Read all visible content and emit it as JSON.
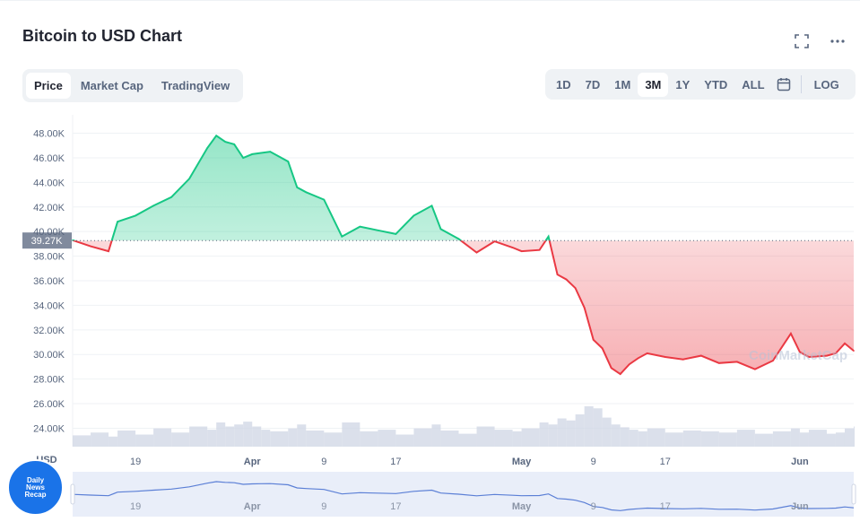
{
  "header": {
    "title": "Bitcoin to USD Chart"
  },
  "icons": {
    "fullscreen": "fullscreen-icon",
    "more": "more-icon",
    "calendar": "calendar-icon"
  },
  "tabs": [
    {
      "label": "Price",
      "active": true
    },
    {
      "label": "Market Cap",
      "active": false
    },
    {
      "label": "TradingView",
      "active": false
    }
  ],
  "ranges": [
    {
      "label": "1D"
    },
    {
      "label": "7D"
    },
    {
      "label": "1M"
    },
    {
      "label": "3M",
      "active": true
    },
    {
      "label": "1Y"
    },
    {
      "label": "YTD"
    },
    {
      "label": "ALL"
    }
  ],
  "log_label": "LOG",
  "badge": {
    "line1": "Daily",
    "line2": "News",
    "line3": "Recap"
  },
  "colors": {
    "up": "#16c784",
    "down": "#ea3943",
    "volume": "#cfd6e4",
    "navigator": "#5b7fd6"
  },
  "chart_data": {
    "type": "line",
    "title": "Bitcoin to USD Chart",
    "ylabel": "USD",
    "currency_label": "USD",
    "ylim": [
      22500,
      49500
    ],
    "yticks": [
      "48.00K",
      "46.00K",
      "44.00K",
      "42.00K",
      "40.00K",
      "38.00K",
      "36.00K",
      "34.00K",
      "32.00K",
      "30.00K",
      "28.00K",
      "26.00K",
      "24.00K"
    ],
    "ytick_values": [
      48000,
      46000,
      44000,
      42000,
      40000,
      38000,
      36000,
      34000,
      32000,
      30000,
      28000,
      26000,
      24000
    ],
    "xticks": [
      "19",
      "Apr",
      "9",
      "17",
      "May",
      "9",
      "17",
      "Jun"
    ],
    "xtick_dates": [
      "2022-03-19",
      "2022-04-01",
      "2022-04-09",
      "2022-04-17",
      "2022-05-01",
      "2022-05-09",
      "2022-05-17",
      "2022-06-01"
    ],
    "xrange": [
      "2022-03-12",
      "2022-06-07"
    ],
    "reference_price": 39270,
    "reference_label": "39.27K",
    "watermark": "CoinMarketCap",
    "series": [
      {
        "x": [
          "2022-03-12",
          "2022-03-14",
          "2022-03-16",
          "2022-03-17",
          "2022-03-19",
          "2022-03-21",
          "2022-03-23",
          "2022-03-25",
          "2022-03-27",
          "2022-03-28",
          "2022-03-29",
          "2022-03-30",
          "2022-03-31",
          "2022-04-01",
          "2022-04-02",
          "2022-04-03",
          "2022-04-05",
          "2022-04-06",
          "2022-04-07",
          "2022-04-09",
          "2022-04-11",
          "2022-04-13",
          "2022-04-15",
          "2022-04-17",
          "2022-04-19",
          "2022-04-21",
          "2022-04-22",
          "2022-04-24",
          "2022-04-26",
          "2022-04-28",
          "2022-04-30",
          "2022-05-01",
          "2022-05-03",
          "2022-05-04",
          "2022-05-05",
          "2022-05-06",
          "2022-05-07",
          "2022-05-08",
          "2022-05-09",
          "2022-05-10",
          "2022-05-11",
          "2022-05-12",
          "2022-05-13",
          "2022-05-14",
          "2022-05-15",
          "2022-05-17",
          "2022-05-19",
          "2022-05-21",
          "2022-05-23",
          "2022-05-25",
          "2022-05-27",
          "2022-05-29",
          "2022-05-31",
          "2022-06-01",
          "2022-06-02",
          "2022-06-04",
          "2022-06-05",
          "2022-06-06",
          "2022-06-07"
        ],
        "values": [
          39300,
          38800,
          38400,
          40800,
          41300,
          42100,
          42800,
          44300,
          46800,
          47800,
          47300,
          47100,
          46000,
          46300,
          46400,
          46500,
          45700,
          43600,
          43200,
          42600,
          39600,
          40400,
          40100,
          39800,
          41300,
          42100,
          40200,
          39400,
          38300,
          39200,
          38700,
          38400,
          38500,
          39600,
          36500,
          36100,
          35400,
          33800,
          31200,
          30500,
          28900,
          28400,
          29200,
          29700,
          30100,
          29800,
          29600,
          29900,
          29300,
          29400,
          28800,
          29500,
          31700,
          30200,
          29800,
          29900,
          30100,
          30900,
          30300
        ]
      }
    ],
    "volume": [
      0.28,
      0.35,
      0.25,
      0.4,
      0.3,
      0.45,
      0.35,
      0.5,
      0.42,
      0.6,
      0.5,
      0.55,
      0.62,
      0.5,
      0.42,
      0.38,
      0.45,
      0.55,
      0.4,
      0.35,
      0.6,
      0.38,
      0.42,
      0.3,
      0.45,
      0.55,
      0.4,
      0.32,
      0.5,
      0.42,
      0.38,
      0.45,
      0.6,
      0.55,
      0.7,
      0.65,
      0.8,
      1.0,
      0.95,
      0.72,
      0.55,
      0.48,
      0.42,
      0.38,
      0.45,
      0.35,
      0.4,
      0.38,
      0.35,
      0.42,
      0.32,
      0.38,
      0.45,
      0.35,
      0.42,
      0.32,
      0.35,
      0.45,
      0.5
    ]
  }
}
